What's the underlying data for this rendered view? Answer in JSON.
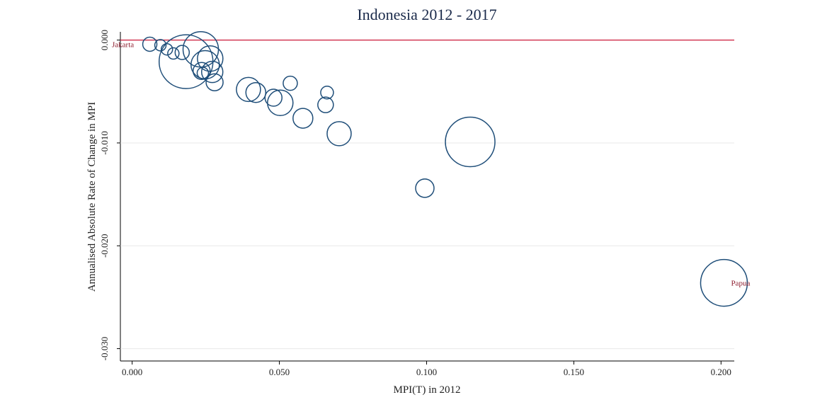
{
  "chart_data": {
    "type": "scatter",
    "title": "Indonesia 2012 - 2017",
    "x_label": "MPI(T) in 2012",
    "y_label": "Annualised Absolute Rate of Change in MPI",
    "xlim": [
      -0.004,
      0.2045
    ],
    "ylim": [
      -0.0312,
      0.0008
    ],
    "xticks": [
      {
        "value": 0,
        "label": "0.000"
      },
      {
        "value": 0.05,
        "label": "0.050"
      },
      {
        "value": 0.1,
        "label": "0.100"
      },
      {
        "value": 0.15,
        "label": "0.150"
      },
      {
        "value": 0.2,
        "label": "0.200"
      }
    ],
    "yticks": [
      {
        "value": 0,
        "label": "0.000"
      },
      {
        "value": -0.01,
        "label": "-0.010"
      },
      {
        "value": -0.02,
        "label": "-0.020"
      },
      {
        "value": -0.03,
        "label": "-0.030"
      }
    ],
    "grid": true,
    "reference_line": {
      "value": 0,
      "color": "#d23a55"
    },
    "color": "#1f4e79",
    "x": [
      0.006,
      0.0096,
      0.0118,
      0.014,
      0.017,
      0.0183,
      0.0233,
      0.0248,
      0.0236,
      0.024,
      0.0272,
      0.028,
      0.0265,
      0.0395,
      0.042,
      0.048,
      0.0503,
      0.0537,
      0.0662,
      0.0657,
      0.058,
      0.0703,
      0.0994,
      0.1148,
      0.201
    ],
    "values": [
      -0.0004,
      -0.0005,
      -0.0009,
      -0.0013,
      -0.0012,
      -0.0021,
      -0.0009,
      -0.0024,
      -0.003,
      -0.0032,
      -0.0031,
      -0.0041,
      -0.0018,
      -0.0048,
      -0.0051,
      -0.0056,
      -0.0061,
      -0.0042,
      -0.0051,
      -0.0063,
      -0.0076,
      -0.0091,
      -0.0144,
      -0.0099,
      -0.0236
    ],
    "sizes": [
      10,
      6.4,
      6.4,
      6.4,
      10,
      144.4,
      62.5,
      40,
      14.4,
      6.4,
      22.5,
      14.4,
      32.4,
      28.9,
      19.6,
      14.4,
      32.4,
      10,
      8.1,
      12.1,
      19.6,
      28.9,
      16.9,
      122.5,
      108.9
    ],
    "labels": [
      "Jakarta",
      null,
      null,
      null,
      null,
      null,
      null,
      null,
      null,
      null,
      null,
      null,
      null,
      null,
      null,
      null,
      null,
      null,
      null,
      null,
      null,
      null,
      null,
      null,
      "Papua"
    ]
  }
}
